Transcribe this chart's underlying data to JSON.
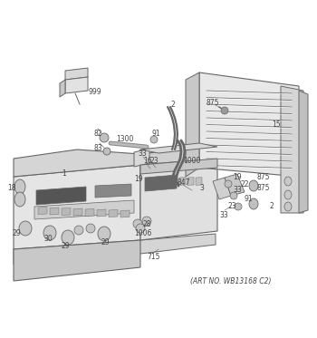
{
  "art_no_text": "(ART NO. WB13168 C2)",
  "bg": "#ffffff",
  "lc": "#666666",
  "lc_light": "#aaaaaa",
  "fc_main": "#e2e2e2",
  "fc_dark": "#c0c0c0",
  "fc_darker": "#b0b0b0",
  "fc_mid": "#d0d0d0",
  "tc": "#444444",
  "fig_width": 3.5,
  "fig_height": 3.73,
  "dpi": 100
}
